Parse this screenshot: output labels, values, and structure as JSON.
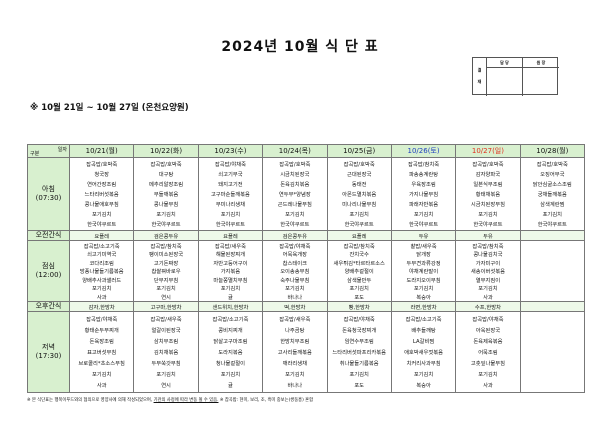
{
  "title": "2024년 10월 식 단 표",
  "approval": {
    "side": "결 재",
    "col1": "담 당",
    "col2": "원 장"
  },
  "subtitle": "※ 10월 21일 ~ 10월 27일 (온천요양원)",
  "corner": {
    "top": "일자",
    "bottom": "구분"
  },
  "colors": {
    "header_bg": "#d8f0cf",
    "saturday": "#1f3fbf",
    "sunday": "#e0301e"
  },
  "days": [
    {
      "label": "10/21(월)",
      "color": ""
    },
    {
      "label": "10/22(화)",
      "color": ""
    },
    {
      "label": "10/23(수)",
      "color": ""
    },
    {
      "label": "10/24(목)",
      "color": ""
    },
    {
      "label": "10/25(금)",
      "color": ""
    },
    {
      "label": "10/26(토)",
      "color": "#1f3fbf"
    },
    {
      "label": "10/27(일)",
      "color": "#e0301e"
    },
    {
      "label": "10/28(월)",
      "color": ""
    }
  ],
  "meals": [
    {
      "label": "아침",
      "time": "(07:30)",
      "type": "main",
      "cells": [
        [
          "잡곡밥/호박죽",
          "청국장",
          "연어간장조림",
          "느타리버섯볶음",
          "콩나물애호무침",
          "포기김치",
          "한국야쿠르트"
        ],
        [
          "잡곡밥/호박죽",
          "대구탕",
          "메추리알장조림",
          "무들깨볶음",
          "콩나물무침",
          "포기김치",
          "한국야쿠르트"
        ],
        [
          "잡곡밥/야채죽",
          "쇠고기무국",
          "돼지고기전",
          "고구마순들깨볶음",
          "무미나리생채",
          "포기김치",
          "한국야쿠르트"
        ],
        [
          "잡곡밥/호박죽",
          "시금치된장국",
          "돈육김치볶음",
          "연두부*양념장",
          "곤드레나물무침",
          "포기김치",
          "한국야쿠르트"
        ],
        [
          "잡곡밥/호박죽",
          "근대된장국",
          "동태전",
          "아몬드멸치볶음",
          "미나리나물무침",
          "포기김치",
          "한국야쿠르트"
        ],
        [
          "잡곡밥/참치죽",
          "파송송계란탕",
          "우육장조림",
          "가지나물무침",
          "파래자반볶음",
          "포기김치",
          "한국야쿠르트"
        ],
        [
          "잡곡밥/호박죽",
          "감자양파국",
          "일본식무조림",
          "황태채볶음",
          "시금치된장무침",
          "포기김치",
          "한국야쿠르트"
        ],
        [
          "잡곡밥/호박죽",
          "오징어무국",
          "닭안심굴소스조림",
          "궁채들깨볶음",
          "삼색계란찜",
          "포기김치",
          "한국야쿠르트"
        ]
      ]
    },
    {
      "label": "오전간식",
      "type": "snack",
      "cells": [
        "요플레",
        "검은콩두유",
        "요플레",
        "검은콩두유",
        "요플레",
        "두유",
        "두유",
        ""
      ]
    },
    {
      "label": "점심",
      "time": "(12:00)",
      "type": "main",
      "cells": [
        [
          "잡곡밥/소고기죽",
          "쇠고기미역국",
          "코다리조림",
          "방풍나물들기름볶음",
          "양배추사과샐러드",
          "포기김치",
          "사과"
        ],
        [
          "잡곡밥/참치죽",
          "팽이미소된장국",
          "고기돈짜장",
          "찹쌀꿔바로우",
          "단무지무침",
          "포기김치",
          "연시"
        ],
        [
          "잡곡밥/새우죽",
          "해물된장찌개",
          "자반고등어구이",
          "가지볶음",
          "마늘쫑멸치무침",
          "포기김치",
          "귤"
        ],
        [
          "잡곡밥/야채죽",
          "어묵육개장",
          "찹스테이크",
          "오이송송무침",
          "숙주나물무침",
          "포기김치",
          "바나나"
        ],
        [
          "잡곡밥/참치죽",
          "잔치국수",
          "새우튀김*타르타르소스",
          "양배추겉절이",
          "삼색물만두",
          "포기김치",
          "포도"
        ],
        [
          "찰밥/새우죽",
          "닭개장",
          "두부견과류강정",
          "야채계란말이",
          "도라지오이무침",
          "포기김치",
          "복숭아"
        ],
        [
          "잡곡밥/참치죽",
          "콩나물김치국",
          "가자미구이",
          "새송이버섯볶음",
          "열무지짐이",
          "포기김치",
          "사과"
        ],
        []
      ]
    },
    {
      "label": "오후간식",
      "type": "snack",
      "cells": [
        "감자,한방차",
        "고구마,한방차",
        "샌드위치,한방차",
        "떡,한방차",
        "빵,한방차",
        "라면,한방차",
        "수프,한방차",
        ""
      ]
    },
    {
      "label": "저녁",
      "time": "(17:30)",
      "type": "main",
      "cells": [
        [
          "잡곡밥/야채죽",
          "황태순두부찌개",
          "돈육장조림",
          "표고버섯무침",
          "브로콜리*초소스무침",
          "포기김치",
          "사과"
        ],
        [
          "잡곡밥/새우죽",
          "얼갈이된장국",
          "삼치무조림",
          "김치채볶음",
          "두부쑥갓무침",
          "포기김치",
          "연시"
        ],
        [
          "잡곡밥/소고기죽",
          "콩비지찌개",
          "닭살고구마조림",
          "도라지볶음",
          "청나물겉절이",
          "포기김치",
          "귤"
        ],
        [
          "잡곡밥/새우죽",
          "나주곰탕",
          "한방치무조림",
          "고사리들깨볶음",
          "깨라리생채",
          "포기김치",
          "바나나"
        ],
        [
          "잡곡밥/야채죽",
          "돈육청국장찌개",
          "임연수무조림",
          "느타리버섯파프리카볶음",
          "취나물들기름볶음",
          "포기김치",
          "포도"
        ],
        [
          "잡곡밥/소고기죽",
          "배추들깨탕",
          "LA갈비찜",
          "애호박새우젓볶음",
          "치커리사과무침",
          "포기김치",
          "복숭아"
        ],
        [
          "잡곡밥/야채죽",
          "아욱된장국",
          "돈육제육볶음",
          "어묵조림",
          "고춧잎나물무침",
          "포기김치",
          "사과"
        ],
        []
      ]
    }
  ],
  "footnote": {
    "part1": "※ 본 식단표는 행복이푸드와의 협의으로 영양사에 의해 작성되었으며, ",
    "underlined": "기관의 사정에 따라 변동 될 수 있음.",
    "part2": " ※ 잡곡밥: 현미, 보리, 조, 흑미 중보는(쌍둥흥) 혼합"
  }
}
